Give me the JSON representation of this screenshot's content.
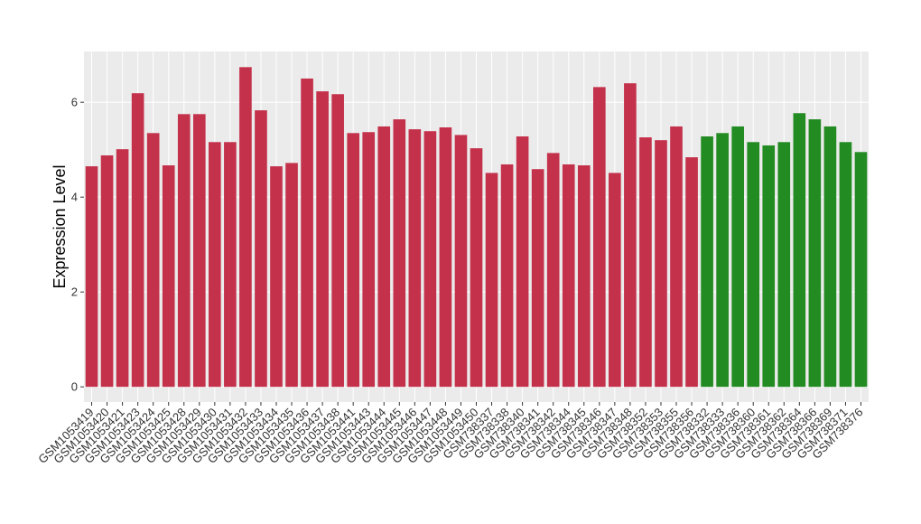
{
  "chart_data": {
    "type": "bar",
    "y_label": "Expression Level",
    "categories": [
      "GSM1053419",
      "GSM1053420",
      "GSM1053421",
      "GSM1053423",
      "GSM1053424",
      "GSM1053425",
      "GSM1053428",
      "GSM1053429",
      "GSM1053430",
      "GSM1053431",
      "GSM1053432",
      "GSM1053433",
      "GSM1053434",
      "GSM1053435",
      "GSM1053436",
      "GSM1053437",
      "GSM1053438",
      "GSM1053441",
      "GSM1053443",
      "GSM1053444",
      "GSM1053445",
      "GSM1053446",
      "GSM1053447",
      "GSM1053448",
      "GSM1053449",
      "GSM1053450",
      "GSM738337",
      "GSM738338",
      "GSM738340",
      "GSM738341",
      "GSM738342",
      "GSM738344",
      "GSM738345",
      "GSM738346",
      "GSM738347",
      "GSM738348",
      "GSM738352",
      "GSM738353",
      "GSM738355",
      "GSM738356",
      "GSM738332",
      "GSM738333",
      "GSM738336",
      "GSM738360",
      "GSM738361",
      "GSM738362",
      "GSM738364",
      "GSM738366",
      "GSM738369",
      "GSM738371",
      "GSM738376"
    ],
    "values": [
      4.65,
      4.88,
      5.01,
      6.19,
      5.35,
      4.67,
      5.75,
      5.75,
      5.16,
      5.16,
      6.74,
      5.83,
      4.65,
      4.72,
      6.5,
      6.23,
      6.17,
      5.35,
      5.37,
      5.49,
      5.64,
      5.43,
      5.39,
      5.47,
      5.31,
      5.03,
      4.51,
      4.69,
      5.28,
      4.59,
      4.93,
      4.69,
      4.67,
      6.32,
      4.51,
      6.4,
      5.26,
      5.2,
      5.49,
      4.84,
      5.28,
      5.35,
      5.49,
      5.16,
      5.09,
      5.16,
      5.77,
      5.64,
      5.49,
      5.16,
      4.95
    ],
    "colors": [
      "#c4314b",
      "#c4314b",
      "#c4314b",
      "#c4314b",
      "#c4314b",
      "#c4314b",
      "#c4314b",
      "#c4314b",
      "#c4314b",
      "#c4314b",
      "#c4314b",
      "#c4314b",
      "#c4314b",
      "#c4314b",
      "#c4314b",
      "#c4314b",
      "#c4314b",
      "#c4314b",
      "#c4314b",
      "#c4314b",
      "#c4314b",
      "#c4314b",
      "#c4314b",
      "#c4314b",
      "#c4314b",
      "#c4314b",
      "#c4314b",
      "#c4314b",
      "#c4314b",
      "#c4314b",
      "#c4314b",
      "#c4314b",
      "#c4314b",
      "#c4314b",
      "#c4314b",
      "#c4314b",
      "#c4314b",
      "#c4314b",
      "#c4314b",
      "#c4314b",
      "#228b22",
      "#228b22",
      "#228b22",
      "#228b22",
      "#228b22",
      "#228b22",
      "#228b22",
      "#228b22",
      "#228b22",
      "#228b22",
      "#228b22"
    ],
    "ylim": [
      -0.32,
      7.07
    ],
    "yticks": [
      0,
      2,
      4,
      6
    ],
    "grid": true
  }
}
